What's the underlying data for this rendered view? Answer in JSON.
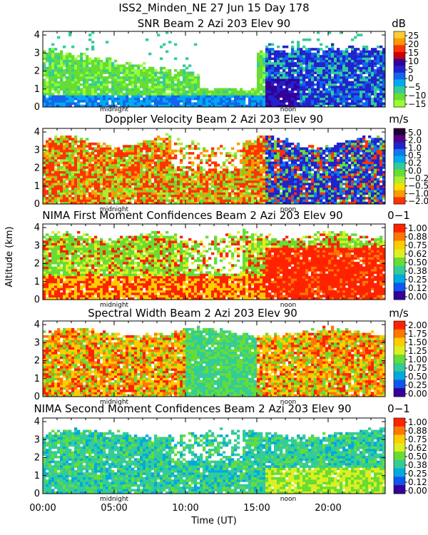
{
  "figure": {
    "title_line1": "ISS2_Minden_NE  27 Jun 15 Day 178",
    "xlabel": "Time (UT)",
    "ylabel": "Altitude (km)",
    "marker_midnight": "midnight",
    "marker_noon": "noon",
    "x_ticks": [
      "00:00",
      "05:00",
      "10:00",
      "15:00",
      "20:00"
    ],
    "y_ticks": [
      "0",
      "1",
      "2",
      "3",
      "4"
    ]
  },
  "chart_data": [
    {
      "type": "heatmap",
      "title": "SNR Beam 2 Azi 203 Elev 90",
      "unit": "dB",
      "xlim": [
        0,
        24
      ],
      "ylim": [
        0,
        4.2
      ],
      "colorbar_ticks": [
        "25",
        "20",
        "15",
        "10",
        "5",
        "0",
        "−5",
        "−10",
        "−15"
      ],
      "colorbar_colors": [
        "#ffcc33",
        "#ff9900",
        "#ff3300",
        "#cc0000",
        "#330099",
        "#2222cc",
        "#1166ee",
        "#00aaee",
        "#33cc99",
        "#66dd33",
        "#99ff33"
      ]
    },
    {
      "type": "heatmap",
      "title": "Doppler Velocity Beam 2 Azi 203 Elev 90",
      "unit": "m/s",
      "xlim": [
        0,
        24
      ],
      "ylim": [
        0,
        4.2
      ],
      "colorbar_ticks": [
        "5.0",
        "2.0",
        "1.0",
        "0.5",
        "0.2",
        "0.0",
        "−0.2",
        "−0.5",
        "−1.0",
        "−2.0"
      ],
      "colorbar_colors": [
        "#220033",
        "#550088",
        "#2222cc",
        "#1177ee",
        "#00aaee",
        "#33cc99",
        "#66dd33",
        "#aaee33",
        "#ffdd00",
        "#ff9900",
        "#ff3300"
      ]
    },
    {
      "type": "heatmap",
      "title": "NIMA First Moment Confidences Beam 2 Azi 203 Elev 90",
      "unit": "0−1",
      "xlim": [
        0,
        24
      ],
      "ylim": [
        0,
        4.2
      ],
      "colorbar_ticks": [
        "1.00",
        "0.88",
        "0.75",
        "0.62",
        "0.50",
        "0.38",
        "0.25",
        "0.12",
        "0.00"
      ],
      "colorbar_colors": [
        "#ff2200",
        "#ff7700",
        "#ffcc00",
        "#ddee22",
        "#66dd33",
        "#33cc99",
        "#00aadd",
        "#1155ee",
        "#330099"
      ]
    },
    {
      "type": "heatmap",
      "title": "Spectral Width Beam 2 Azi 203 Elev 90",
      "unit": "m/s",
      "xlim": [
        0,
        24
      ],
      "ylim": [
        0,
        4.2
      ],
      "colorbar_ticks": [
        "2.00",
        "1.75",
        "1.50",
        "1.25",
        "1.00",
        "0.75",
        "0.50",
        "0.25",
        "0.00"
      ],
      "colorbar_colors": [
        "#ff2200",
        "#ff7700",
        "#ffcc00",
        "#ddee22",
        "#66dd33",
        "#33cc99",
        "#00aadd",
        "#1155ee",
        "#330099"
      ]
    },
    {
      "type": "heatmap",
      "title": "NIMA Second Moment Confidences Beam 2 Azi 203 Elev 90",
      "unit": "0−1",
      "xlim": [
        0,
        24
      ],
      "ylim": [
        0,
        4.2
      ],
      "colorbar_ticks": [
        "1.00",
        "0.88",
        "0.75",
        "0.62",
        "0.50",
        "0.38",
        "0.25",
        "0.12",
        "0.00"
      ],
      "colorbar_colors": [
        "#ff2200",
        "#ff7700",
        "#ffcc00",
        "#ddee22",
        "#66dd33",
        "#33cc99",
        "#00aadd",
        "#1155ee",
        "#330099"
      ]
    }
  ]
}
